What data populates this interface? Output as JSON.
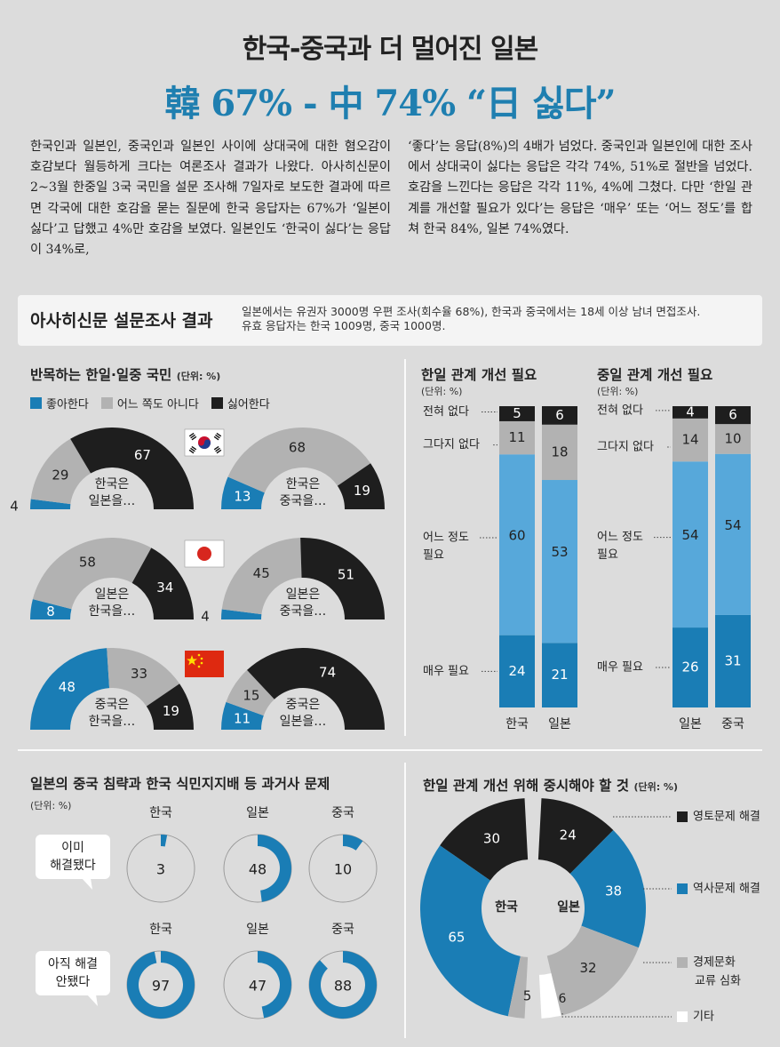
{
  "header": {
    "title": "한국-중국과 더 멀어진 일본",
    "headline": "韓 67% - 中 74% “日 싫다”"
  },
  "article": {
    "left": "한국인과 일본인, 중국인과 일본인 사이에 상대국에 대한 혐오감이 호감보다 월등하게 크다는 여론조사 결과가 나왔다. 아사히신문이 2~3월 한중일 3국 국민을 설문 조사해 7일자로 보도한 결과에 따르면 각국에 대한 호감을 묻는 질문에 한국 응답자는 67%가 ‘일본이 싫다’고 답했고 4%만 호감을 보였다. 일본인도 ‘한국이 싫다’는 응답이 34%로,",
    "right": "‘좋다’는 응답(8%)의 4배가 넘었다. 중국인과 일본인에 대한 조사에서 상대국이 싫다는 응답은 각각 74%, 51%로 절반을 넘었다. 호감을 느낀다는 응답은 각각 11%, 4%에 그쳤다. 다만 ‘한일 관계를 개선할 필요가 있다’는 응답은 ‘매우’ 또는 ‘어느 정도’를 합쳐 한국 84%, 일본 74%였다."
  },
  "survey": {
    "title": "아사히신문 설문조사 결과",
    "note1": "일본에서는 유권자 3000명 우편 조사(회수율 68%), 한국과 중국에서는 18세 이상 남녀 면접조사.",
    "note2": "유효 응답자는 한국 1009명, 중국 1000명."
  },
  "colors": {
    "like": "#1a7db5",
    "neutral": "#b2b2b2",
    "dislike": "#1e1e1e",
    "light_blue": "#57a8da",
    "white": "#ffffff"
  },
  "chart_data": [
    {
      "type": "pie",
      "title": "반목하는 한일·일중 국민",
      "unit": "(단위: %)",
      "legend": [
        "좋아한다",
        "어느 쪽도 아니다",
        "싫어한다"
      ],
      "series": [
        {
          "flag": "korea-flag",
          "label1": "한국은",
          "label2": "일본을…",
          "values": [
            4,
            29,
            67
          ]
        },
        {
          "flag": "",
          "label1": "한국은",
          "label2": "중국을…",
          "values": [
            13,
            68,
            19
          ]
        },
        {
          "flag": "japan-flag",
          "label1": "일본은",
          "label2": "한국을…",
          "values": [
            8,
            58,
            34
          ]
        },
        {
          "flag": "",
          "label1": "일본은",
          "label2": "중국을…",
          "values": [
            4,
            45,
            51
          ]
        },
        {
          "flag": "china-flag",
          "label1": "중국은",
          "label2": "한국을…",
          "values": [
            48,
            33,
            19
          ]
        },
        {
          "flag": "",
          "label1": "중국은",
          "label2": "일본을…",
          "values": [
            11,
            15,
            74
          ]
        }
      ]
    },
    {
      "type": "bar",
      "title": "한일 관계 개선 필요",
      "unit": "(단위: %)",
      "categories": [
        "한국",
        "일본"
      ],
      "series": [
        {
          "name": "매우 필요",
          "values": [
            24,
            21
          ]
        },
        {
          "name": "어느 정도 필요",
          "values": [
            60,
            53
          ]
        },
        {
          "name": "그다지 없다",
          "values": [
            11,
            18
          ]
        },
        {
          "name": "전혀 없다",
          "values": [
            5,
            6
          ]
        }
      ]
    },
    {
      "type": "bar",
      "title": "중일 관계 개선 필요",
      "unit": "(단위: %)",
      "categories": [
        "일본",
        "중국"
      ],
      "series": [
        {
          "name": "매우 필요",
          "values": [
            26,
            31
          ]
        },
        {
          "name": "어느 정도 필요",
          "values": [
            54,
            54
          ]
        },
        {
          "name": "그다지 없다",
          "values": [
            14,
            10
          ]
        },
        {
          "name": "전혀 없다",
          "values": [
            4,
            6
          ]
        }
      ]
    },
    {
      "type": "pie",
      "title": "일본의 중국 침략과 한국 식민지지배 등 과거사 문제",
      "unit": "(단위: %)",
      "categories": [
        "한국",
        "일본",
        "중국"
      ],
      "series": [
        {
          "name": "이미 해결됐다",
          "label1": "이미",
          "label2": "해결됐다",
          "values": [
            3,
            48,
            10
          ]
        },
        {
          "name": "아직 해결 안됐다",
          "label1": "아직 해결",
          "label2": "안됐다",
          "values": [
            97,
            47,
            88
          ]
        }
      ]
    },
    {
      "type": "pie",
      "title": "한일 관계 개선 위해 중시해야 할 것",
      "unit": "(단위: %)",
      "legend": [
        "영토문제 해결",
        "역사문제 해결",
        "경제문화 교류 심화",
        "기타"
      ],
      "series": [
        {
          "name": "한국",
          "values": [
            30,
            65,
            5,
            0
          ]
        },
        {
          "name": "일본",
          "values": [
            24,
            38,
            32,
            6
          ]
        }
      ]
    }
  ]
}
